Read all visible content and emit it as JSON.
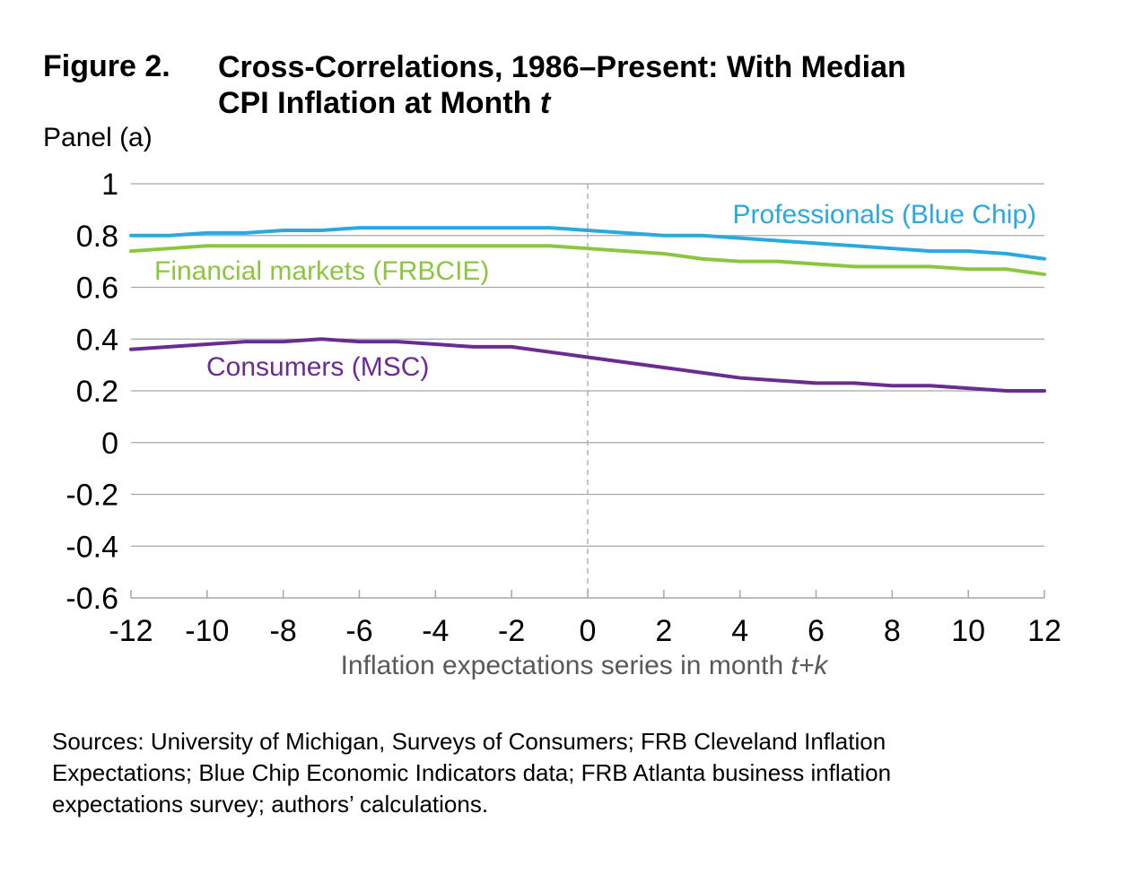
{
  "figure": {
    "label": "Figure 2.",
    "title_line1": "Cross-Correlations, 1986–Present: With Median",
    "title_line2_text": "CPI Inflation at Month ",
    "title_line2_italic": "t",
    "panel": "Panel (a)"
  },
  "chart_data": {
    "type": "line",
    "title": "Cross-Correlations, 1986–Present: With Median CPI Inflation at Month t",
    "xlabel_text": "Inflation expectations series in month ",
    "xlabel_italic": "t+k",
    "ylabel": "",
    "x": [
      -12,
      -11,
      -10,
      -9,
      -8,
      -7,
      -6,
      -5,
      -4,
      -3,
      -2,
      -1,
      0,
      1,
      2,
      3,
      4,
      5,
      6,
      7,
      8,
      9,
      10,
      11,
      12
    ],
    "xlim": [
      -12,
      12
    ],
    "ylim": [
      -0.6,
      1
    ],
    "x_ticks": [
      -12,
      -10,
      -8,
      -6,
      -4,
      -2,
      0,
      2,
      4,
      6,
      8,
      10,
      12
    ],
    "x_tick_labels": [
      "-12",
      "-10",
      "-8",
      "-6",
      "-4",
      "-2",
      "0",
      "2",
      "4",
      "6",
      "8",
      "10",
      "12"
    ],
    "y_ticks": [
      1,
      0.8,
      0.6,
      0.4,
      0.2,
      0,
      -0.2,
      -0.4,
      -0.6
    ],
    "y_tick_labels": [
      "1",
      "0.8",
      "0.6",
      "0.4",
      "0.2",
      "0",
      "-0.2",
      "-0.4",
      "-0.6"
    ],
    "grid": "horizontal",
    "reference_line": {
      "x": 0,
      "style": "dashed"
    },
    "series": [
      {
        "name": "Professionals (Blue Chip)",
        "color": "#2aa8e0",
        "values": [
          0.8,
          0.8,
          0.81,
          0.81,
          0.82,
          0.82,
          0.83,
          0.83,
          0.83,
          0.83,
          0.83,
          0.83,
          0.82,
          0.81,
          0.8,
          0.8,
          0.79,
          0.78,
          0.77,
          0.76,
          0.75,
          0.74,
          0.74,
          0.73,
          0.71
        ]
      },
      {
        "name": "Financial markets (FRBCIE)",
        "color": "#8cc63f",
        "values": [
          0.74,
          0.75,
          0.76,
          0.76,
          0.76,
          0.76,
          0.76,
          0.76,
          0.76,
          0.76,
          0.76,
          0.76,
          0.75,
          0.74,
          0.73,
          0.71,
          0.7,
          0.7,
          0.69,
          0.68,
          0.68,
          0.68,
          0.67,
          0.67,
          0.65
        ]
      },
      {
        "name": "Consumers (MSC)",
        "color": "#6a2c91",
        "values": [
          0.36,
          0.37,
          0.38,
          0.39,
          0.39,
          0.4,
          0.39,
          0.39,
          0.38,
          0.37,
          0.37,
          0.35,
          0.33,
          0.31,
          0.29,
          0.27,
          0.25,
          0.24,
          0.23,
          0.23,
          0.22,
          0.22,
          0.21,
          0.2,
          0.2
        ]
      }
    ],
    "colors": {
      "axis": "#a6a6a6",
      "grid": "#a6a6a6",
      "tick_text": "#000000",
      "xlabel_text": "#595959"
    }
  },
  "sources": {
    "line1": "Sources: University of Michigan, Surveys of Consumers; FRB Cleveland Inflation",
    "line2": "Expectations; Blue Chip Economic Indicators data; FRB Atlanta business inflation",
    "line3": "expectations survey; authors’ calculations."
  }
}
